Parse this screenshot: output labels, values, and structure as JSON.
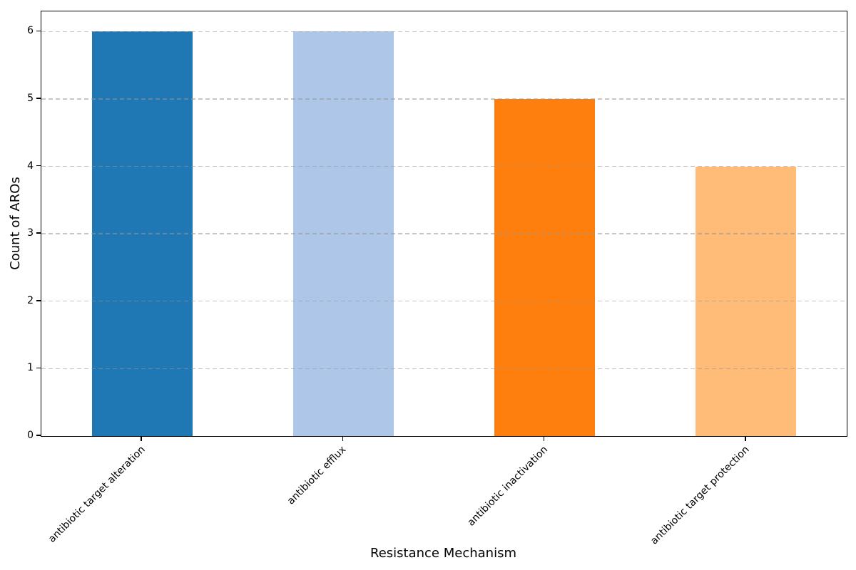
{
  "chart_data": {
    "type": "bar",
    "title": "",
    "xlabel": "Resistance Mechanism",
    "ylabel": "Count of AROs",
    "categories": [
      "antibiotic target alteration",
      "antibiotic efflux",
      "antibiotic inactivation",
      "antibiotic target protection"
    ],
    "values": [
      6,
      6,
      5,
      4
    ],
    "bar_colors": [
      "#1f77b4",
      "#aec7e8",
      "#ff7f0e",
      "#ffbb78"
    ],
    "ylim": [
      0,
      6.3
    ],
    "yticks": [
      0,
      1,
      2,
      3,
      4,
      5,
      6
    ],
    "bar_width_fraction": 0.5,
    "grid": {
      "axis": "y",
      "style": "dashed",
      "color": "#c8c8c8",
      "drawn_above_bars": true
    },
    "legend": null,
    "x_tick_rotation_deg": 45,
    "axis_color": "#000000",
    "background_color": "#ffffff"
  }
}
